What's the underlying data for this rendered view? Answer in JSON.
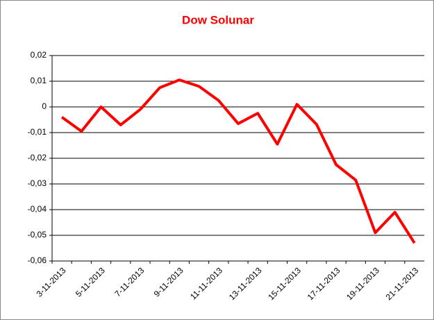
{
  "chart_data": {
    "type": "line",
    "title": "Dow Solunar",
    "categories": [
      "3-11-2013",
      null,
      "5-11-2013",
      null,
      "7-11-2013",
      null,
      "9-11-2013",
      null,
      "11-11-2013",
      null,
      "13-11-2013",
      null,
      "15-11-2013",
      null,
      "17-11-2013",
      null,
      "19-11-2013",
      null,
      "21-11-2013"
    ],
    "series": [
      {
        "name": "Dow Solunar",
        "color": "#ff0000",
        "values": [
          -0.004,
          -0.0095,
          0,
          -0.007,
          -0.001,
          0.0075,
          0.0105,
          0.008,
          0.0025,
          -0.0065,
          -0.0025,
          -0.0145,
          0.001,
          -0.0068,
          -0.0225,
          -0.0285,
          -0.049,
          -0.041,
          -0.053
        ]
      }
    ],
    "ylim": [
      -0.06,
      0.02
    ],
    "yticks": [
      {
        "value": -0.06,
        "label": "-0,06"
      },
      {
        "value": -0.05,
        "label": "-0,05"
      },
      {
        "value": -0.04,
        "label": "-0,04"
      },
      {
        "value": -0.03,
        "label": "-0,03"
      },
      {
        "value": -0.02,
        "label": "-0,02"
      },
      {
        "value": -0.01,
        "label": "-0,01"
      },
      0,
      {
        "value": 0.01,
        "label": "0,01"
      },
      {
        "value": 0.02,
        "label": "0,02"
      }
    ],
    "grid": true
  }
}
